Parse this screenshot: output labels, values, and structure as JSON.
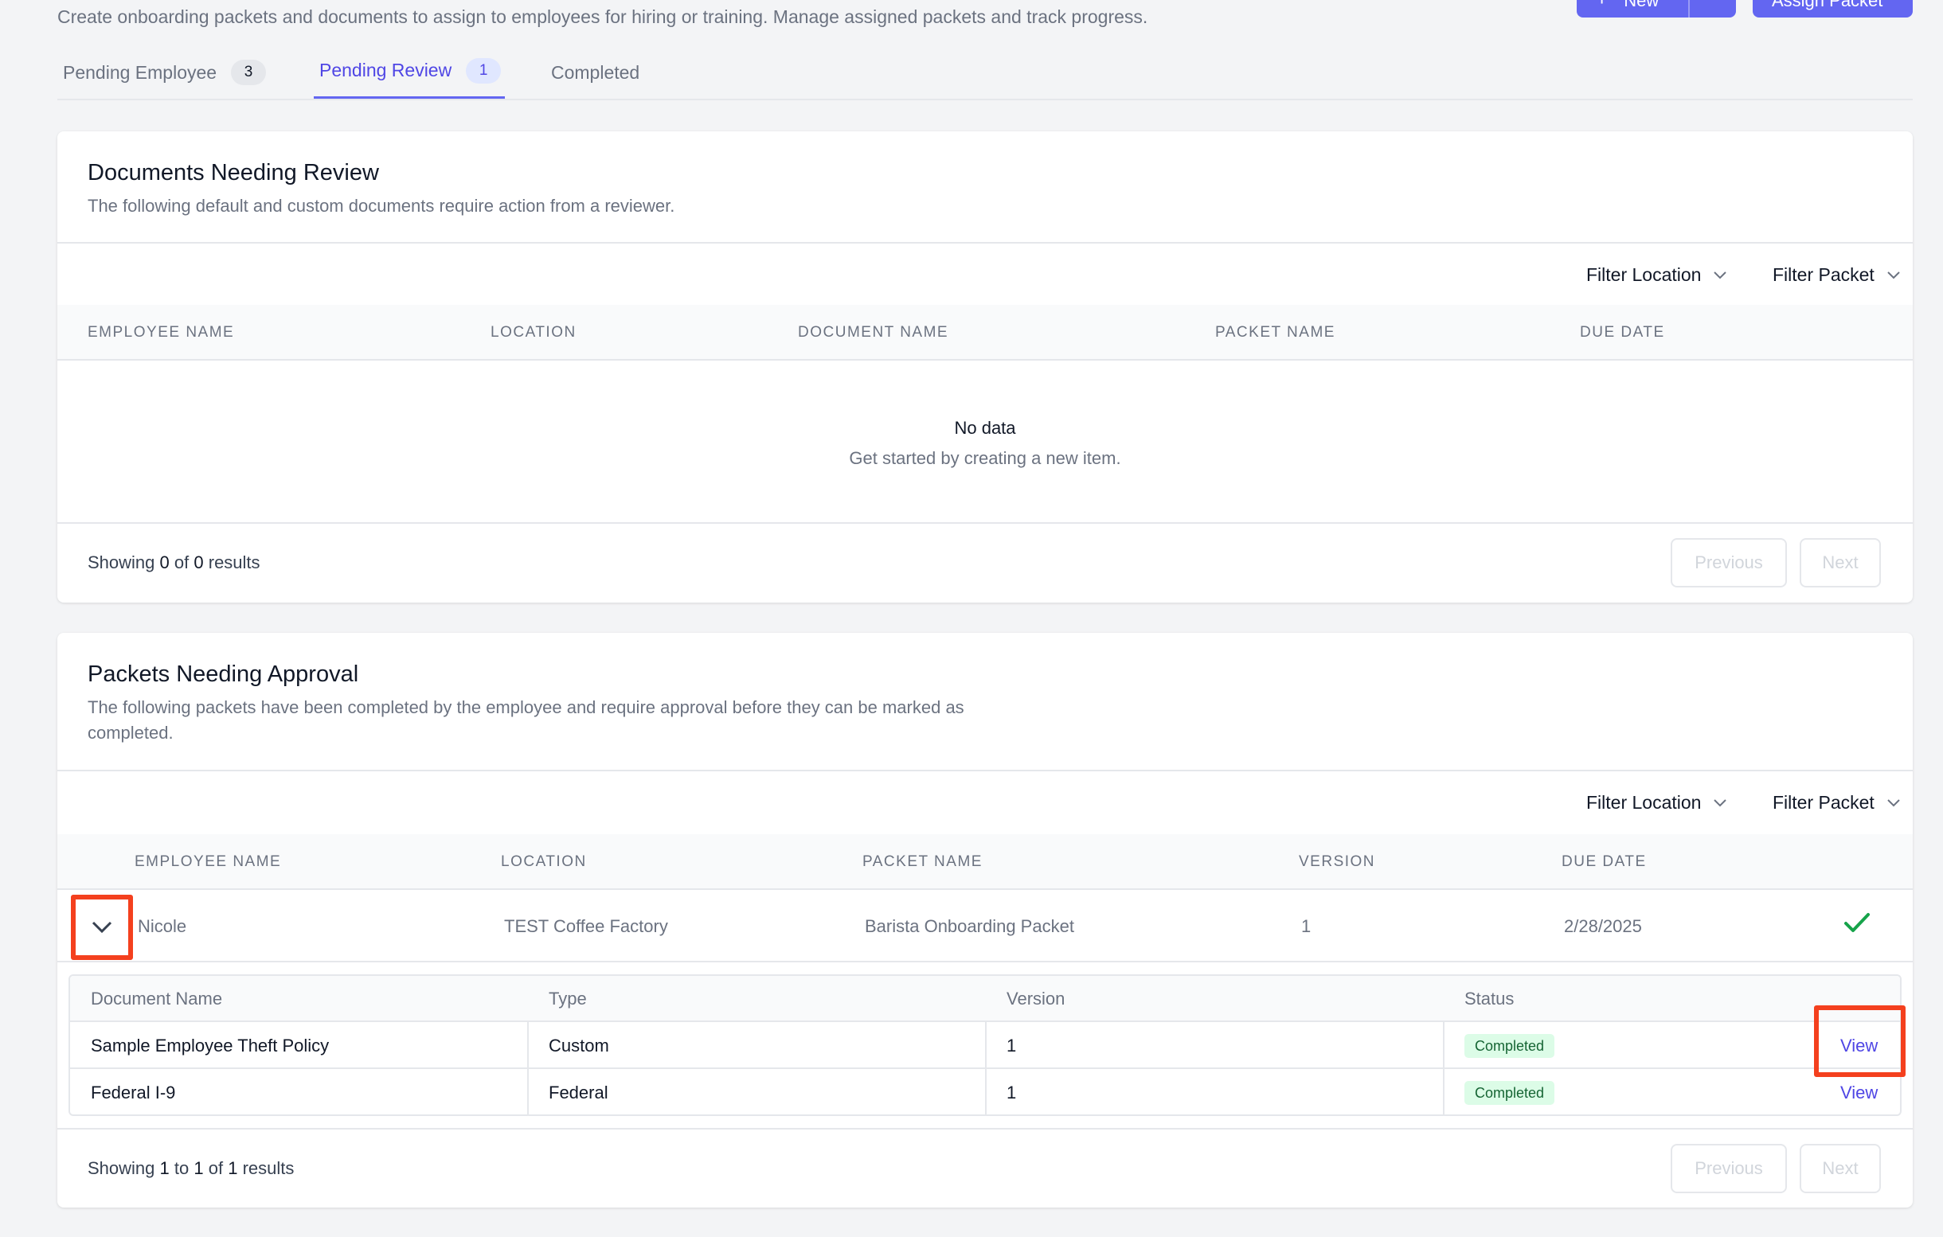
{
  "header": {
    "subtitle": "Create onboarding packets and documents to assign to employees for hiring or training. Manage assigned packets and track progress.",
    "new_button": "New",
    "assign_button": "Assign Packet"
  },
  "tabs": [
    {
      "label": "Pending Employee",
      "count": "3"
    },
    {
      "label": "Pending Review",
      "count": "1",
      "active": true
    },
    {
      "label": "Completed"
    }
  ],
  "documents_review": {
    "title": "Documents Needing Review",
    "description": "The following default and custom documents require action from a reviewer.",
    "filter_location": "Filter Location",
    "filter_packet": "Filter Packet",
    "columns": [
      "EMPLOYEE NAME",
      "LOCATION",
      "DOCUMENT NAME",
      "PACKET NAME",
      "DUE DATE"
    ],
    "empty_title": "No data",
    "empty_subtitle": "Get started by creating a new item.",
    "showing_prefix": "Showing",
    "showing_from": "0",
    "showing_of": "of",
    "showing_total": "0",
    "showing_suffix": "results",
    "previous": "Previous",
    "next": "Next"
  },
  "packets_approval": {
    "title": "Packets Needing Approval",
    "description": "The following packets have been completed by the employee and require approval before they can be marked as completed.",
    "filter_location": "Filter Location",
    "filter_packet": "Filter Packet",
    "columns": [
      "EMPLOYEE NAME",
      "LOCATION",
      "PACKET NAME",
      "VERSION",
      "DUE DATE"
    ],
    "row": {
      "employee": "Nicole",
      "location": "TEST Coffee Factory",
      "packet": "Barista Onboarding Packet",
      "version": "1",
      "due_date": "2/28/2025"
    },
    "sub_columns": [
      "Document Name",
      "Type",
      "Version",
      "Status"
    ],
    "documents": [
      {
        "name": "Sample Employee Theft Policy",
        "type": "Custom",
        "version": "1",
        "status": "Completed",
        "action": "View"
      },
      {
        "name": "Federal I-9",
        "type": "Federal",
        "version": "1",
        "status": "Completed",
        "action": "View"
      }
    ],
    "showing_prefix": "Showing",
    "showing_from": "1",
    "showing_to_word": "to",
    "showing_to": "1",
    "showing_of": "of",
    "showing_total": "1",
    "showing_suffix": "results",
    "previous": "Previous",
    "next": "Next"
  },
  "colors": {
    "accent": "#6366f1",
    "highlight": "#f4401e",
    "success": "#16a34a"
  },
  "icons": {
    "expand": "chevron-down-icon",
    "approved": "check-icon",
    "filter": "chevron-down-icon"
  }
}
